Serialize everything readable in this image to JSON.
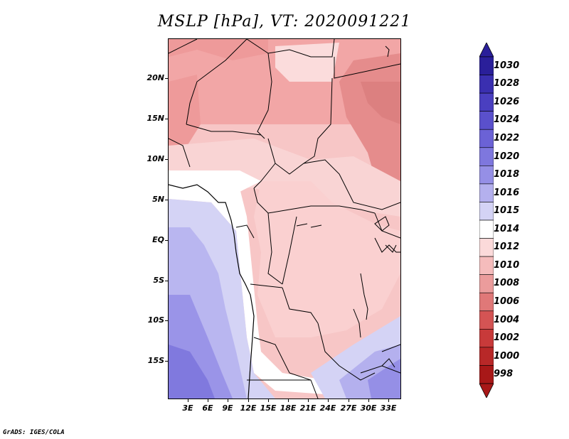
{
  "title": "MSLP [hPa], VT: 2020091221",
  "credit": "GrADS: IGES/COLA",
  "map": {
    "lat_labels": [
      "20N",
      "15N",
      "10N",
      "5N",
      "EQ",
      "5S",
      "10S",
      "15S"
    ],
    "lon_labels": [
      "3E",
      "6E",
      "9E",
      "12E",
      "15E",
      "18E",
      "21E",
      "24E",
      "27E",
      "30E",
      "33E"
    ],
    "variable": "Mean sea level pressure",
    "units": "hPa"
  },
  "colorbar": {
    "labels": [
      "1030",
      "1028",
      "1026",
      "1024",
      "1022",
      "1020",
      "1018",
      "1016",
      "1015",
      "1014",
      "1012",
      "1010",
      "1008",
      "1006",
      "1004",
      "1002",
      "1000",
      "998"
    ],
    "colors": [
      "#2a1f9a",
      "#3a2fb0",
      "#4a3fc0",
      "#5a50cc",
      "#6b62d6",
      "#7e77de",
      "#958fe6",
      "#b4b0ee",
      "#d4d3f5",
      "#ffffff",
      "#fbdada",
      "#f5bcbc",
      "#eb9c9c",
      "#e07878",
      "#d45454",
      "#c83a3a",
      "#b82828",
      "#a81818"
    ]
  }
}
